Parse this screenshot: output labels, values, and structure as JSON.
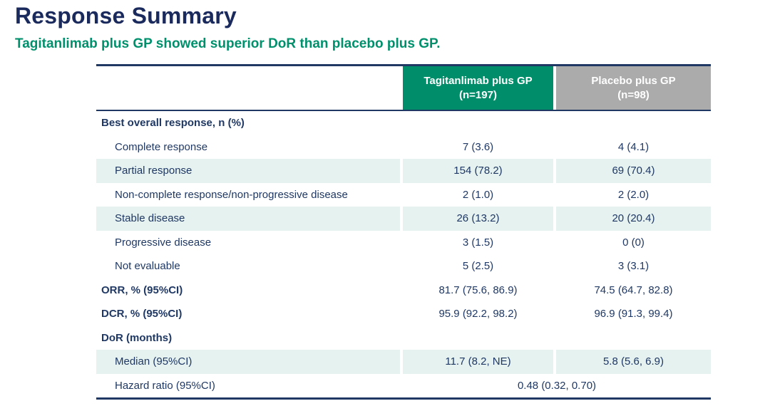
{
  "colors": {
    "title_navy": "#1b2a5c",
    "body_text_navy": "#1f3864",
    "border_navy": "#1f3864",
    "accent_green": "#008e6a",
    "subtitle_green": "#00916c",
    "header_gray": "#ababab",
    "stripe_teal": "#e6f2f0"
  },
  "page": {
    "title": "Response Summary",
    "subtitle": "Tagitanlimab plus GP showed superior DoR than placebo plus GP."
  },
  "table": {
    "header": {
      "col1": {
        "name": "Tagitanlimab plus GP",
        "n": "(n=197)"
      },
      "col2": {
        "name": "Placebo plus GP",
        "n": "(n=98)"
      }
    },
    "rows": [
      {
        "type": "section",
        "striped": false,
        "label": "Best overall response, n (%)",
        "v1": "",
        "v2": ""
      },
      {
        "type": "sub",
        "striped": false,
        "label": "Complete response",
        "v1": "7 (3.6)",
        "v2": "4 (4.1)"
      },
      {
        "type": "sub",
        "striped": true,
        "label": "Partial response",
        "v1": "154 (78.2)",
        "v2": "69 (70.4)"
      },
      {
        "type": "sub",
        "striped": false,
        "label": "Non-complete response/non-progressive disease",
        "v1": "2 (1.0)",
        "v2": "2 (2.0)"
      },
      {
        "type": "sub",
        "striped": true,
        "label": "Stable disease",
        "v1": "26 (13.2)",
        "v2": "20 (20.4)"
      },
      {
        "type": "sub",
        "striped": false,
        "label": "Progressive disease",
        "v1": "3 (1.5)",
        "v2": "0 (0)"
      },
      {
        "type": "sub",
        "striped": false,
        "label": "Not evaluable",
        "v1": "5 (2.5)",
        "v2": "3 (3.1)"
      },
      {
        "type": "section",
        "striped": false,
        "label": "ORR, % (95%CI)",
        "v1": "81.7 (75.6, 86.9)",
        "v2": "74.5 (64.7, 82.8)"
      },
      {
        "type": "section",
        "striped": false,
        "label": "DCR, % (95%CI)",
        "v1": "95.9 (92.2, 98.2)",
        "v2": "96.9 (91.3, 99.4)"
      },
      {
        "type": "section",
        "striped": false,
        "label": "DoR (months)",
        "v1": "",
        "v2": ""
      },
      {
        "type": "sub",
        "striped": true,
        "label": "Median (95%CI)",
        "v1": "11.7 (8.2, NE)",
        "v2": "5.8 (5.6, 6.9)"
      },
      {
        "type": "sub",
        "striped": false,
        "span": true,
        "label": "Hazard ratio (95%CI)",
        "v1": "0.48 (0.32, 0.70)"
      }
    ]
  }
}
